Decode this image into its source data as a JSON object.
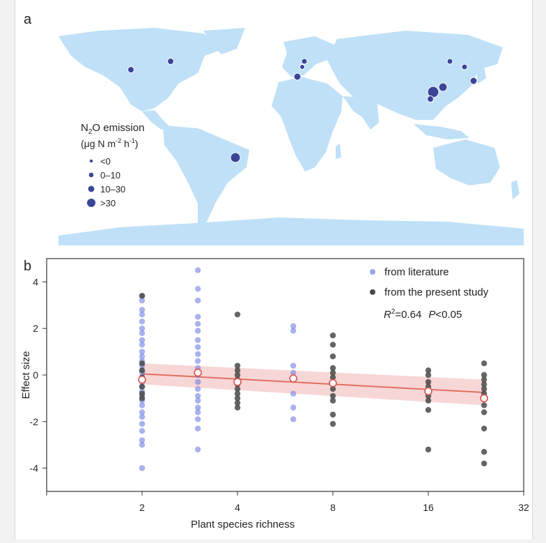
{
  "panel_a": {
    "label": "a",
    "legend": {
      "title_prefix": "N",
      "title_sub": "2",
      "title_suffix": "O emission",
      "unit_prefix": "(μg N m",
      "unit_sup1": "-2",
      "unit_mid": " h",
      "unit_sup2": "-1",
      "unit_suffix": ")",
      "classes": [
        "<0",
        "0–10",
        "10–30",
        ">30"
      ]
    },
    "colors": {
      "land": "#bfe0f7",
      "site": "#3b4597"
    }
  },
  "panel_b": {
    "label": "b",
    "legend_items": [
      "from literature",
      "from the present study"
    ],
    "stats": {
      "r2_label": "R",
      "r2_sup": "2",
      "r2_value": "=0.64",
      "p_label": "P",
      "p_value": "<0.05"
    }
  },
  "chart_data": {
    "type": "scatter",
    "xlabel": "Plant species richness",
    "ylabel": "Effect size",
    "x_scale": "log2",
    "xlim": [
      1,
      32
    ],
    "ylim": [
      -5,
      5
    ],
    "x_ticks": [
      2,
      4,
      8,
      16,
      32
    ],
    "y_ticks": [
      4,
      2,
      0,
      -2,
      -4
    ],
    "series": [
      {
        "name": "from literature",
        "color": "#6f7fe0",
        "points": [
          [
            2,
            3.4
          ],
          [
            2,
            3.2
          ],
          [
            2,
            2.8
          ],
          [
            2,
            2.6
          ],
          [
            2,
            2.3
          ],
          [
            2,
            2.0
          ],
          [
            2,
            1.8
          ],
          [
            2,
            1.5
          ],
          [
            2,
            1.3
          ],
          [
            2,
            1.0
          ],
          [
            2,
            0.8
          ],
          [
            2,
            0.6
          ],
          [
            2,
            0.4
          ],
          [
            2,
            0.2
          ],
          [
            2,
            0.1
          ],
          [
            2,
            -0.1
          ],
          [
            2,
            -0.3
          ],
          [
            2,
            -0.5
          ],
          [
            2,
            -0.7
          ],
          [
            2,
            -0.9
          ],
          [
            2,
            -1.1
          ],
          [
            2,
            -1.3
          ],
          [
            2,
            -1.6
          ],
          [
            2,
            -1.8
          ],
          [
            2,
            -2.1
          ],
          [
            2,
            -2.4
          ],
          [
            2,
            -2.8
          ],
          [
            2,
            -3.0
          ],
          [
            2,
            -4.0
          ],
          [
            3,
            4.5
          ],
          [
            3,
            3.7
          ],
          [
            3,
            3.2
          ],
          [
            3,
            2.5
          ],
          [
            3,
            2.2
          ],
          [
            3,
            1.9
          ],
          [
            3,
            1.5
          ],
          [
            3,
            1.2
          ],
          [
            3,
            0.9
          ],
          [
            3,
            0.6
          ],
          [
            3,
            0.3
          ],
          [
            3,
            0.0
          ],
          [
            3,
            -0.3
          ],
          [
            3,
            -0.6
          ],
          [
            3,
            -0.9
          ],
          [
            3,
            -1.1
          ],
          [
            3,
            -1.4
          ],
          [
            3,
            -1.6
          ],
          [
            3,
            -1.9
          ],
          [
            3,
            -2.3
          ],
          [
            3,
            -3.2
          ],
          [
            6,
            2.1
          ],
          [
            6,
            1.9
          ],
          [
            6,
            0.4
          ],
          [
            6,
            0.1
          ],
          [
            6,
            -0.8
          ],
          [
            6,
            -1.4
          ],
          [
            6,
            -1.9
          ]
        ]
      },
      {
        "name": "from the present study",
        "color": "#4a4a4a",
        "points": [
          [
            2,
            3.4
          ],
          [
            2,
            0.5
          ],
          [
            2,
            0.2
          ],
          [
            2,
            -0.1
          ],
          [
            2,
            -0.5
          ],
          [
            2,
            -0.8
          ],
          [
            2,
            -1.0
          ],
          [
            4,
            2.6
          ],
          [
            4,
            0.4
          ],
          [
            4,
            0.2
          ],
          [
            4,
            0.0
          ],
          [
            4,
            -0.2
          ],
          [
            4,
            -0.4
          ],
          [
            4,
            -0.6
          ],
          [
            4,
            -0.8
          ],
          [
            4,
            -1.0
          ],
          [
            4,
            -1.2
          ],
          [
            4,
            -1.4
          ],
          [
            8,
            1.7
          ],
          [
            8,
            1.3
          ],
          [
            8,
            0.8
          ],
          [
            8,
            0.3
          ],
          [
            8,
            0.1
          ],
          [
            8,
            -0.1
          ],
          [
            8,
            -0.3
          ],
          [
            8,
            -0.6
          ],
          [
            8,
            -0.9
          ],
          [
            8,
            -1.1
          ],
          [
            8,
            -1.7
          ],
          [
            8,
            -2.1
          ],
          [
            16,
            0.2
          ],
          [
            16,
            0.0
          ],
          [
            16,
            -0.3
          ],
          [
            16,
            -0.5
          ],
          [
            16,
            -0.7
          ],
          [
            16,
            -0.9
          ],
          [
            16,
            -1.1
          ],
          [
            16,
            -1.5
          ],
          [
            16,
            -3.2
          ],
          [
            24,
            0.5
          ],
          [
            24,
            0.0
          ],
          [
            24,
            -0.2
          ],
          [
            24,
            -0.4
          ],
          [
            24,
            -0.6
          ],
          [
            24,
            -0.8
          ],
          [
            24,
            -1.0
          ],
          [
            24,
            -1.3
          ],
          [
            24,
            -1.6
          ],
          [
            24,
            -2.3
          ],
          [
            24,
            -3.3
          ],
          [
            24,
            -3.8
          ]
        ]
      }
    ],
    "means": {
      "color": "#d9534f",
      "points": [
        [
          2,
          -0.2
        ],
        [
          3,
          0.1
        ],
        [
          4,
          -0.3
        ],
        [
          6,
          -0.15
        ],
        [
          8,
          -0.35
        ],
        [
          16,
          -0.7
        ],
        [
          24,
          -1.0
        ]
      ]
    },
    "fit_line": {
      "color": "#e07060",
      "x": [
        2,
        24
      ],
      "y": [
        0.05,
        -0.75
      ],
      "ci_color": "#f3c4c4"
    }
  }
}
